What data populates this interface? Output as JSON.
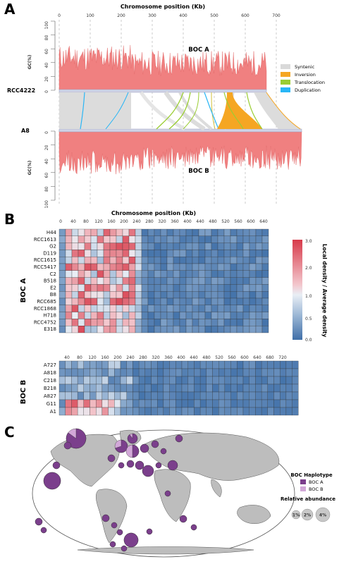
{
  "panels": {
    "a": {
      "letter": "A"
    },
    "b": {
      "letter": "B"
    },
    "c": {
      "letter": "C"
    }
  },
  "panel_a": {
    "axis_title": "Chromosome position (Kb)",
    "x_ticks": [
      "0",
      "100",
      "200",
      "300",
      "400",
      "500",
      "600",
      "700"
    ],
    "gc_label": "GC(%)",
    "gc_ticks_top": [
      "100",
      "80",
      "60",
      "40",
      "20",
      "0"
    ],
    "gc_ticks_bottom": [
      "0",
      "20",
      "40",
      "60",
      "80",
      "100"
    ],
    "top_label": "BOC A",
    "bottom_label": "BOC B",
    "top_strain": "RCC4222",
    "bottom_strain": "A8",
    "legend": [
      {
        "label": "Syntenic",
        "color": "#d9d9d9"
      },
      {
        "label": "Inversion",
        "color": "#f5a623"
      },
      {
        "label": "Translocation",
        "color": "#9acd32"
      },
      {
        "label": "Duplication",
        "color": "#29b6f6"
      }
    ]
  },
  "panel_b": {
    "axis_title": "Chromosome position (Kb)",
    "top_ticks": [
      "0",
      "40",
      "80",
      "120",
      "160",
      "200",
      "240",
      "280",
      "320",
      "360",
      "400",
      "440",
      "480",
      "520",
      "560",
      "600",
      "640"
    ],
    "bottom_ticks": [
      "40",
      "80",
      "120",
      "160",
      "200",
      "240",
      "280",
      "320",
      "360",
      "400",
      "440",
      "480",
      "520",
      "560",
      "600",
      "640",
      "680",
      "720"
    ],
    "group_a_label": "BOC A",
    "group_b_label": "BOC B",
    "rows_a": [
      "H44",
      "RCC1613",
      "G2",
      "D119",
      "RCC1615",
      "RCC5417",
      "C2",
      "B518",
      "E2",
      "B8",
      "RCC685",
      "RCC1868",
      "H718",
      "RCC4752",
      "E318"
    ],
    "rows_b": [
      "A727",
      "A818",
      "C218",
      "B218",
      "A827",
      "G11",
      "A1"
    ],
    "colorbar_title": "Local density / Average density",
    "colorbar_ticks": [
      "3.0",
      "2.0",
      "1.0",
      "0.5",
      "0.0"
    ]
  },
  "panel_c": {
    "legend_title": "BOC Haplotype",
    "legend_items": [
      {
        "label": "BOC A",
        "color": "#7b3f8c"
      },
      {
        "label": "BOC B",
        "color": "#d2a8d8"
      }
    ],
    "abundance_title": "Relative abundance",
    "abundance_items": [
      "1%",
      "2%",
      "4%"
    ]
  }
}
